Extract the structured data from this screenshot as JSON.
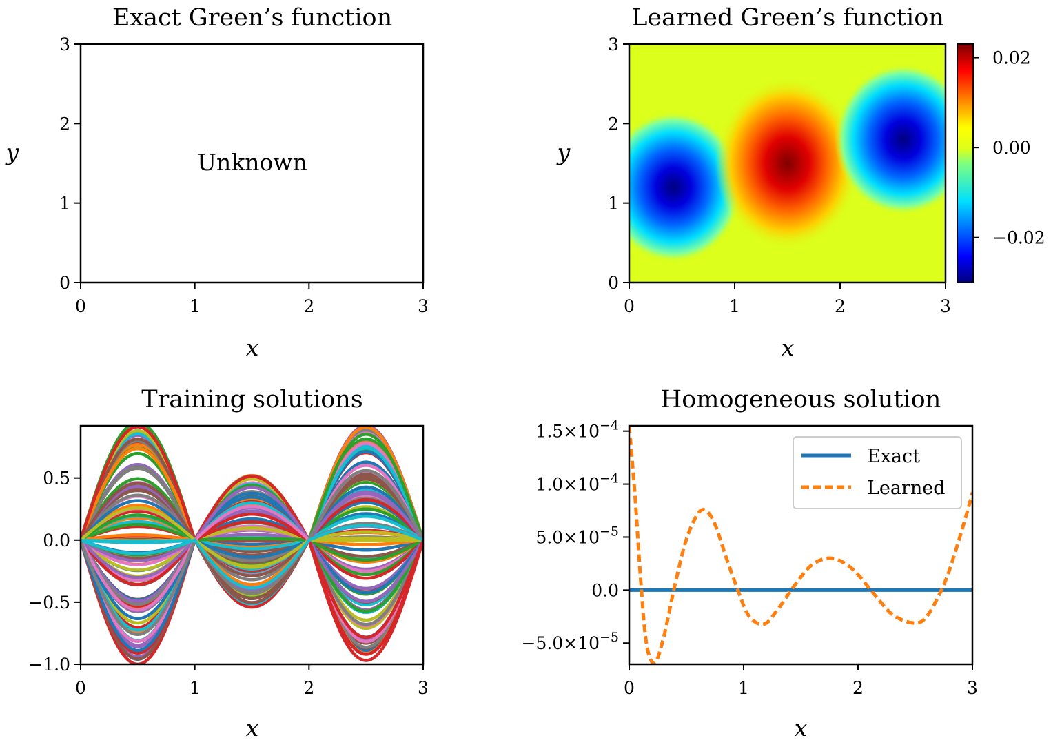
{
  "chart_data": [
    {
      "type": "table",
      "title": "Exact Green’s function",
      "xlabel": "x",
      "ylabel": "y",
      "xlim": [
        0,
        3
      ],
      "ylim": [
        0,
        3
      ],
      "xticks": [
        "0",
        "1",
        "2",
        "3"
      ],
      "yticks": [
        "0",
        "1",
        "2",
        "3"
      ],
      "annotation": "Unknown"
    },
    {
      "type": "heatmap",
      "title": "Learned Green’s function",
      "xlabel": "x",
      "ylabel": "y",
      "xlim": [
        0,
        3
      ],
      "ylim": [
        0,
        3
      ],
      "xticks": [
        "0",
        "1",
        "2",
        "3"
      ],
      "yticks": [
        "0",
        "1",
        "2",
        "3"
      ],
      "colormap": "jet",
      "clim": [
        -0.03,
        0.023
      ],
      "colorbar_ticks": [
        {
          "value": 0.02,
          "label": "0.02"
        },
        {
          "value": 0.0,
          "label": "0.00"
        },
        {
          "value": -0.02,
          "label": "−0.02"
        }
      ],
      "features": [
        {
          "kind": "minimum",
          "x": 0.42,
          "y": 1.2,
          "value": -0.03
        },
        {
          "kind": "maximum",
          "x": 1.5,
          "y": 1.5,
          "value": 0.023
        },
        {
          "kind": "minimum",
          "x": 2.6,
          "y": 1.8,
          "value": -0.029
        }
      ]
    },
    {
      "type": "line",
      "title": "Training solutions",
      "xlabel": "x",
      "ylabel": "",
      "xlim": [
        0,
        3
      ],
      "ylim": [
        -1.0,
        0.92
      ],
      "xticks": [
        "0",
        "1",
        "2",
        "3"
      ],
      "yticks": [
        {
          "value": 0.5,
          "label": "0.5"
        },
        {
          "value": 0.0,
          "label": "0.0"
        },
        {
          "value": -0.5,
          "label": "−0.5"
        },
        {
          "value": -1.0,
          "label": "−1.0"
        }
      ],
      "curve_form": "a·sin(πx/1) on [0,1], b·sin(π(x−1)) on [1,2], c·sin(π(x−2)) on [2,3]",
      "series_count": 100,
      "lobe_peak_x": [
        0.39,
        1.5,
        2.62
      ],
      "lobe_amplitude_range": {
        "lobe1": [
          -1.0,
          0.92
        ],
        "lobe2": [
          -0.52,
          0.54
        ],
        "lobe3": [
          -0.97,
          0.88
        ]
      }
    },
    {
      "type": "line",
      "title": "Homogeneous solution",
      "xlabel": "x",
      "ylabel": "",
      "xlim": [
        0,
        3
      ],
      "ylim": [
        -7e-05,
        0.000155
      ],
      "xticks": [
        "0",
        "1",
        "2",
        "3"
      ],
      "yticks": [
        {
          "value": 0.00015,
          "label": "1.5×10−4"
        },
        {
          "value": 0.0001,
          "label": "1.0×10−4"
        },
        {
          "value": 5e-05,
          "label": "5.0×10−5"
        },
        {
          "value": 0.0,
          "label": "0.0"
        },
        {
          "value": -5e-05,
          "label": "−5.0×10−5"
        }
      ],
      "legend_position": "top-right",
      "series": [
        {
          "name": "Exact",
          "color": "#1f77b4",
          "style": "solid",
          "x": [
            0,
            3
          ],
          "y": [
            0,
            0
          ]
        },
        {
          "name": "Learned",
          "color": "#ff7f0e",
          "style": "dashed",
          "x": [
            0,
            0.05,
            0.1,
            0.15,
            0.22,
            0.3,
            0.4,
            0.5,
            0.6,
            0.67,
            0.75,
            0.85,
            0.95,
            1.05,
            1.18,
            1.3,
            1.45,
            1.6,
            1.77,
            1.95,
            2.15,
            2.3,
            2.48,
            2.6,
            2.75,
            2.85,
            2.95,
            3.0
          ],
          "y": [
            0.000155,
            9e-05,
            1e-05,
            -5e-05,
            -6.9e-05,
            -4.5e-05,
            5e-06,
            4.8e-05,
            7.2e-05,
            7.5e-05,
            6.2e-05,
            3e-05,
            0.0,
            -2.5e-05,
            -3.2e-05,
            -1.8e-05,
            5e-06,
            2.4e-05,
            3e-05,
            2e-05,
            -5e-06,
            -2.3e-05,
            -3.1e-05,
            -2.5e-05,
            5e-06,
            3.6e-05,
            7.2e-05,
            9.2e-05
          ]
        }
      ]
    }
  ]
}
